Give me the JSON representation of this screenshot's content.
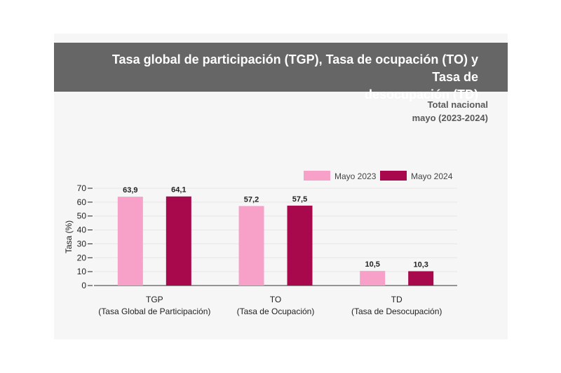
{
  "header": {
    "title_line1": "Tasa global de participación (TGP), Tasa de ocupación (TO) y Tasa de",
    "title_line2": "desocupación (TD)",
    "subtitle_line1": "Total nacional",
    "subtitle_line2": "mayo (2023-2024)"
  },
  "colors": {
    "banner": "#666666",
    "mayo_2023": "#f7a1c9",
    "mayo_2024": "#a8084c"
  },
  "chart_data": {
    "type": "bar",
    "title": "Tasa global de participación (TGP), Tasa de ocupación (TO) y Tasa de desocupación (TD)",
    "ylabel": "Tasa (%)",
    "xlabel": "",
    "ylim": [
      0,
      70
    ],
    "yticks": [
      0,
      10,
      20,
      30,
      40,
      50,
      60,
      70
    ],
    "grid": true,
    "legend_position": "top-right",
    "categories": [
      {
        "code": "TGP",
        "name": "(Tasa Global de Participación)"
      },
      {
        "code": "TO",
        "name": "(Tasa de Ocupación)"
      },
      {
        "code": "TD",
        "name": "(Tasa de Desocupación)"
      }
    ],
    "series": [
      {
        "name": "Mayo 2023",
        "color": "#f7a1c9",
        "values": [
          63.9,
          57.2,
          10.5
        ],
        "labels": [
          "63,9",
          "57,2",
          "10,5"
        ]
      },
      {
        "name": "Mayo 2024",
        "color": "#a8084c",
        "values": [
          64.1,
          57.5,
          10.3
        ],
        "labels": [
          "64,1",
          "57,5",
          "10,3"
        ]
      }
    ]
  }
}
